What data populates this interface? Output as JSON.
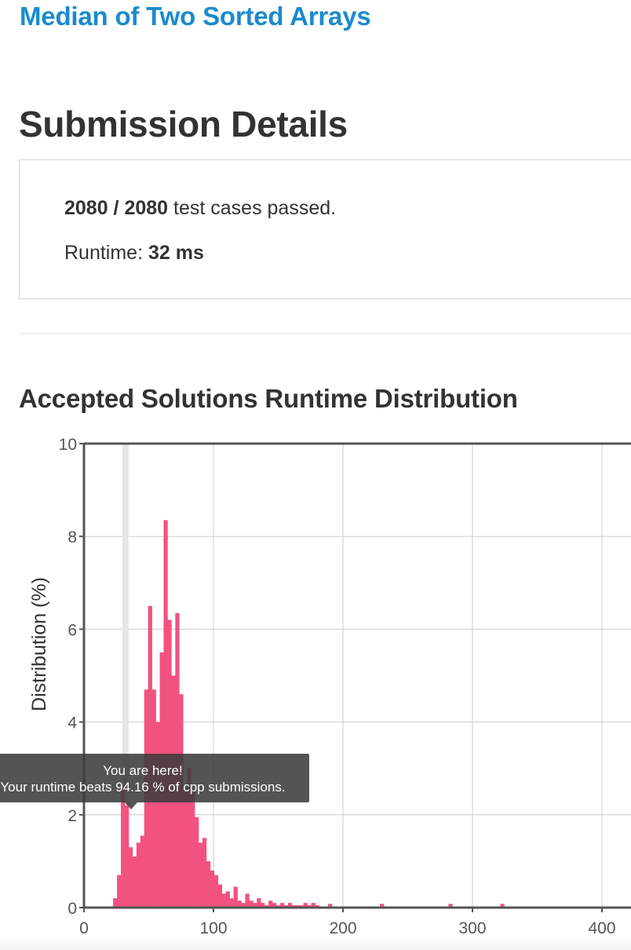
{
  "header": {
    "problem_title": "Median of Two Sorted Arrays"
  },
  "submission": {
    "heading": "Submission Details",
    "passed": "2080 / 2080",
    "passed_suffix": " test cases passed.",
    "runtime_label": "Runtime: ",
    "runtime_value": "32 ms"
  },
  "distribution": {
    "heading": "Accepted Solutions Runtime Distribution"
  },
  "tooltip": {
    "line1": "You are here!",
    "line2": "Your runtime beats 94.16 % of cpp submissions."
  },
  "colors": {
    "bar": "#f2527f",
    "marker": "#e6e6e6",
    "link": "#1a8bcd",
    "axis": "#555555",
    "grid": "#cccccc"
  },
  "chart_data": {
    "type": "bar",
    "ylabel": "Distribution (%)",
    "xlabel": "",
    "xlim": [
      0,
      420
    ],
    "ylim": [
      0,
      10
    ],
    "xticks": [
      0,
      100,
      200,
      300,
      400
    ],
    "yticks": [
      0,
      2,
      4,
      6,
      8,
      10
    ],
    "bin_width": 3,
    "marker_x": 32,
    "x": [
      24,
      27,
      30,
      33,
      36,
      39,
      42,
      45,
      48,
      51,
      54,
      57,
      60,
      63,
      66,
      69,
      72,
      75,
      78,
      81,
      84,
      87,
      90,
      93,
      96,
      99,
      102,
      105,
      108,
      111,
      114,
      117,
      120,
      123,
      126,
      129,
      132,
      135,
      138,
      141,
      144,
      147,
      150,
      153,
      156,
      159,
      162,
      165,
      168,
      171,
      174,
      177,
      180,
      190,
      230,
      283,
      323
    ],
    "values": [
      0.2,
      0.7,
      2.6,
      2.2,
      1.3,
      1.1,
      1.4,
      1.55,
      4.7,
      6.5,
      4.7,
      4.0,
      5.5,
      8.35,
      6.2,
      5.0,
      6.35,
      4.6,
      2.55,
      3.0,
      2.55,
      1.95,
      1.4,
      1.5,
      1.0,
      0.8,
      0.7,
      0.5,
      0.3,
      0.35,
      0.2,
      0.45,
      0.15,
      0.1,
      0.3,
      0.15,
      0.1,
      0.2,
      0.1,
      0.05,
      0.15,
      0.1,
      0.05,
      0.1,
      0.05,
      0.1,
      0.05,
      0.05,
      0.05,
      0.1,
      0.05,
      0.1,
      0.05,
      0.08,
      0.08,
      0.08,
      0.08
    ]
  }
}
